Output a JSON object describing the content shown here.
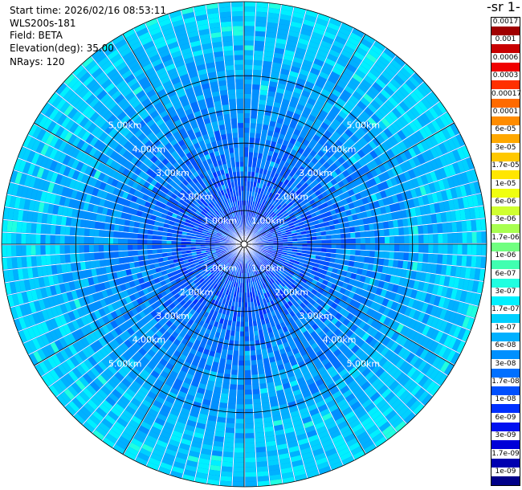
{
  "info": {
    "start_time": "Start time: 2026/02/16 08:53:11",
    "instrument": "WLS200s-181",
    "field": "Field: BETA",
    "elevation": "Elevation(deg): 35.00",
    "nrays": "NRays: 120"
  },
  "colorbar": {
    "unit_title": "-1 sr-",
    "labels": [
      "0.0017",
      "0.001",
      "0.0006",
      "0.0003",
      "0.00017",
      "0.0001",
      "6e-05",
      "3e-05",
      "1.7e-05",
      "1e-05",
      "6e-06",
      "3e-06",
      "1.7e-06",
      "1e-06",
      "6e-07",
      "3e-07",
      "1.7e-07",
      "1e-07",
      "6e-08",
      "3e-08",
      "1.7e-08",
      "1e-08",
      "6e-09",
      "3e-09",
      "1.7e-09",
      "1e-09"
    ],
    "colors": [
      "#a00000",
      "#c80000",
      "#f00000",
      "#ff3000",
      "#ff6a00",
      "#ff8c00",
      "#ffa800",
      "#ffc800",
      "#ffe600",
      "#f0ff10",
      "#d0ff30",
      "#a8ff50",
      "#70ff80",
      "#40ffb0",
      "#20ffe0",
      "#00f0ff",
      "#00d0ff",
      "#00b0ff",
      "#0090ff",
      "#0070ff",
      "#0050ff",
      "#0030ff",
      "#0010f0",
      "#0000d8",
      "#0000b0",
      "#000088"
    ]
  },
  "chart_data": {
    "type": "heatmap",
    "projection": "polar-ppi",
    "field": "BETA",
    "elevation_deg": 35.0,
    "n_rays": 120,
    "range_labels_km": [
      "1.00km",
      "2.00km",
      "3.00km",
      "4.00km",
      "5.00km"
    ],
    "range_rings_km": [
      1,
      2,
      3,
      4,
      5
    ],
    "max_range_km": 7.2,
    "dominant_values": [
      "6e-09",
      "3e-08",
      "1.7e-07"
    ],
    "color_scale": "log"
  }
}
